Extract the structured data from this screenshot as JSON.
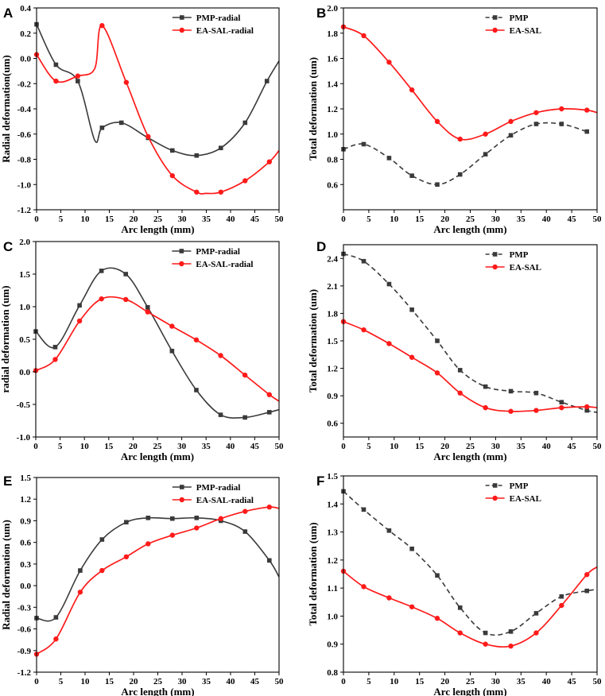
{
  "colors": {
    "pmp": "#3a3a3a",
    "easal": "#ff1a1a",
    "axis": "#000000",
    "background": "#ffffff"
  },
  "chart_data": [
    {
      "panel": "A",
      "type": "line",
      "xlabel": "Arc length (mm)",
      "ylabel": "Radial deformation(um)",
      "xlim": [
        0,
        50
      ],
      "ylim": [
        -1.2,
        0.4
      ],
      "xticks": [
        0,
        5,
        10,
        15,
        20,
        25,
        30,
        35,
        40,
        45,
        50
      ],
      "yticks": [
        -1.2,
        -1.0,
        -0.8,
        -0.6,
        -0.4,
        -0.2,
        0.0,
        0.2,
        0.4
      ],
      "ytick_labels": [
        "-1.2",
        "-1.0",
        "-0.8",
        "-0.6",
        "-0.4",
        "-0.2",
        "0.0",
        "0.2",
        "0.4"
      ],
      "legend_position": "top-right",
      "series": [
        {
          "name": "PMP-radial",
          "style": "solid",
          "marker": "square",
          "x": [
            0,
            4,
            8.5,
            12,
            13.5,
            17.5,
            23,
            28,
            33,
            38,
            43,
            47.5,
            50
          ],
          "y": [
            0.27,
            -0.05,
            -0.18,
            -0.65,
            -0.55,
            -0.51,
            -0.63,
            -0.73,
            -0.77,
            -0.71,
            -0.51,
            -0.18,
            -0.02
          ],
          "marker_indices": [
            0,
            1,
            2,
            4,
            5,
            6,
            7,
            8,
            9,
            10,
            11
          ]
        },
        {
          "name": "EA-SAL-radial",
          "style": "solid",
          "marker": "circle",
          "x": [
            0,
            4,
            8.5,
            12,
            13.5,
            18.5,
            23,
            28,
            33,
            35,
            38,
            43,
            48,
            50
          ],
          "y": [
            0.03,
            -0.18,
            -0.14,
            -0.08,
            0.26,
            -0.19,
            -0.62,
            -0.93,
            -1.06,
            -1.07,
            -1.06,
            -0.97,
            -0.82,
            -0.73
          ],
          "marker_indices": [
            0,
            1,
            2,
            4,
            5,
            6,
            7,
            8,
            10,
            11,
            12
          ]
        }
      ]
    },
    {
      "panel": "B",
      "type": "line",
      "xlabel": "Arc length (mm)",
      "ylabel": "Total deformation (um)",
      "xlim": [
        0,
        50
      ],
      "ylim": [
        0.4,
        2.0
      ],
      "xticks": [
        0,
        5,
        10,
        15,
        20,
        25,
        30,
        35,
        40,
        45,
        50
      ],
      "yticks": [
        0.6,
        0.8,
        1.0,
        1.2,
        1.4,
        1.6,
        1.8,
        2.0
      ],
      "ytick_labels": [
        "0.6",
        "0.8",
        "1.0",
        "1.2",
        "1.4",
        "1.6",
        "1.8",
        "2.0"
      ],
      "legend_position": "top-right",
      "series": [
        {
          "name": "PMP",
          "style": "dashed",
          "marker": "square",
          "x": [
            0,
            4,
            9,
            13.5,
            18.5,
            23,
            28,
            33,
            38,
            43,
            48
          ],
          "y": [
            0.88,
            0.92,
            0.81,
            0.67,
            0.6,
            0.68,
            0.84,
            0.99,
            1.08,
            1.08,
            1.02
          ],
          "marker_indices": [
            0,
            1,
            2,
            3,
            4,
            5,
            6,
            7,
            8,
            9,
            10
          ]
        },
        {
          "name": "EA-SAL",
          "style": "solid",
          "marker": "circle",
          "x": [
            0,
            4,
            9,
            13.5,
            18.5,
            23,
            28,
            33,
            38,
            43,
            48,
            50
          ],
          "y": [
            1.85,
            1.78,
            1.57,
            1.35,
            1.1,
            0.96,
            1.0,
            1.1,
            1.17,
            1.2,
            1.19,
            1.17
          ],
          "marker_indices": [
            0,
            1,
            2,
            3,
            4,
            5,
            6,
            7,
            8,
            9,
            10
          ]
        }
      ]
    },
    {
      "panel": "C",
      "type": "line",
      "xlabel": "Arc length (mm)",
      "ylabel": "radial deformation (um)",
      "xlim": [
        0,
        50
      ],
      "ylim": [
        -1.0,
        2.0
      ],
      "xticks": [
        0,
        5,
        10,
        15,
        20,
        25,
        30,
        35,
        40,
        45,
        50
      ],
      "yticks": [
        -1.0,
        -0.5,
        0.0,
        0.5,
        1.0,
        1.5,
        2.0
      ],
      "ytick_labels": [
        "-1.0",
        "-0.5",
        "0.0",
        "0.5",
        "1.0",
        "1.5",
        "2.0"
      ],
      "legend_position": "top-right",
      "series": [
        {
          "name": "PMP-radial",
          "style": "solid",
          "marker": "square",
          "x": [
            0,
            4,
            9,
            13.5,
            18.5,
            23,
            28,
            33,
            38,
            43,
            48,
            50
          ],
          "y": [
            0.62,
            0.38,
            1.02,
            1.55,
            1.5,
            0.99,
            0.32,
            -0.28,
            -0.66,
            -0.7,
            -0.62,
            -0.58
          ],
          "marker_indices": [
            0,
            1,
            2,
            3,
            4,
            5,
            6,
            7,
            8,
            9,
            10
          ]
        },
        {
          "name": "EA-SAL-radial",
          "style": "solid",
          "marker": "circle",
          "x": [
            0,
            4,
            9,
            13.5,
            18.5,
            23,
            28,
            33,
            38,
            43,
            48,
            50
          ],
          "y": [
            0.02,
            0.19,
            0.78,
            1.12,
            1.11,
            0.92,
            0.7,
            0.49,
            0.25,
            -0.05,
            -0.35,
            -0.45
          ],
          "marker_indices": [
            0,
            1,
            2,
            3,
            4,
            5,
            6,
            7,
            8,
            9,
            10
          ]
        }
      ]
    },
    {
      "panel": "D",
      "type": "line",
      "xlabel": "Arc length (mm)",
      "ylabel": "Total deformation (um)",
      "xlim": [
        0,
        50
      ],
      "ylim": [
        0.45,
        2.55
      ],
      "xticks": [
        0,
        5,
        10,
        15,
        20,
        25,
        30,
        35,
        40,
        45,
        50
      ],
      "yticks": [
        0.6,
        0.9,
        1.2,
        1.5,
        1.8,
        2.1,
        2.4
      ],
      "ytick_labels": [
        "0.6",
        "0.9",
        "1.2",
        "1.5",
        "1.8",
        "2.1",
        "2.4"
      ],
      "legend_position": "top-right",
      "series": [
        {
          "name": "PMP",
          "style": "dashed",
          "marker": "square",
          "x": [
            0,
            4,
            9,
            13.5,
            18.5,
            23,
            28,
            33,
            38,
            43,
            48,
            50
          ],
          "y": [
            2.45,
            2.37,
            2.12,
            1.84,
            1.5,
            1.18,
            1.0,
            0.95,
            0.93,
            0.83,
            0.74,
            0.72
          ],
          "marker_indices": [
            0,
            1,
            2,
            3,
            4,
            5,
            6,
            7,
            8,
            9,
            10
          ]
        },
        {
          "name": "EA-SAL",
          "style": "solid",
          "marker": "circle",
          "x": [
            0,
            4,
            9,
            13.5,
            18.5,
            23,
            28,
            33,
            38,
            43,
            48,
            50
          ],
          "y": [
            1.71,
            1.62,
            1.47,
            1.32,
            1.15,
            0.93,
            0.77,
            0.73,
            0.74,
            0.77,
            0.78,
            0.77
          ],
          "marker_indices": [
            0,
            1,
            2,
            3,
            4,
            5,
            6,
            7,
            8,
            9,
            10
          ]
        }
      ]
    },
    {
      "panel": "E",
      "type": "line",
      "xlabel": "Arc length (mm)",
      "ylabel": "Radial deformation (um)",
      "xlim": [
        0,
        50
      ],
      "ylim": [
        -1.2,
        1.5
      ],
      "xticks": [
        0,
        5,
        10,
        15,
        20,
        25,
        30,
        35,
        40,
        45,
        50
      ],
      "yticks": [
        -1.2,
        -0.9,
        -0.6,
        -0.3,
        0.0,
        0.3,
        0.6,
        0.9,
        1.2,
        1.5
      ],
      "ytick_labels": [
        "-1.2",
        "-0.9",
        "-0.6",
        "-0.3",
        "0.0",
        "0.3",
        "0.6",
        "0.9",
        "1.2",
        "1.5"
      ],
      "legend_position": "top-right",
      "series": [
        {
          "name": "PMP-radial",
          "style": "solid",
          "marker": "square",
          "x": [
            0,
            4,
            9,
            13.5,
            18.5,
            23,
            28,
            33,
            38,
            43,
            48,
            50
          ],
          "y": [
            -0.45,
            -0.44,
            0.21,
            0.64,
            0.88,
            0.94,
            0.93,
            0.94,
            0.9,
            0.75,
            0.35,
            0.12
          ],
          "marker_indices": [
            0,
            1,
            2,
            3,
            4,
            5,
            6,
            7,
            8,
            9,
            10
          ]
        },
        {
          "name": "EA-SAL-radial",
          "style": "solid",
          "marker": "circle",
          "x": [
            0,
            4,
            9,
            13.5,
            18.5,
            23,
            28,
            33,
            38,
            43,
            48,
            50
          ],
          "y": [
            -0.95,
            -0.74,
            -0.09,
            0.21,
            0.4,
            0.58,
            0.7,
            0.8,
            0.93,
            1.03,
            1.09,
            1.07
          ],
          "marker_indices": [
            0,
            1,
            2,
            3,
            4,
            5,
            6,
            7,
            8,
            9,
            10
          ]
        }
      ]
    },
    {
      "panel": "F",
      "type": "line",
      "xlabel": "Arc length (mm)",
      "ylabel": "Total deformation (um)",
      "xlim": [
        0,
        50
      ],
      "ylim": [
        0.8,
        1.5
      ],
      "xticks": [
        0,
        5,
        10,
        15,
        20,
        25,
        30,
        35,
        40,
        45,
        50
      ],
      "yticks": [
        0.8,
        0.9,
        1.0,
        1.1,
        1.2,
        1.3,
        1.4,
        1.5
      ],
      "ytick_labels": [
        "0.8",
        "0.9",
        "1.0",
        "1.1",
        "1.2",
        "1.3",
        "1.4",
        "1.5"
      ],
      "legend_position": "top-right",
      "series": [
        {
          "name": "PMP",
          "style": "dashed",
          "marker": "square",
          "x": [
            0,
            4,
            9,
            13.5,
            18.5,
            23,
            28,
            33,
            38,
            43,
            48,
            50
          ],
          "y": [
            1.445,
            1.38,
            1.305,
            1.24,
            1.145,
            1.03,
            0.94,
            0.945,
            1.01,
            1.07,
            1.09,
            1.095
          ],
          "marker_indices": [
            0,
            1,
            2,
            3,
            4,
            5,
            6,
            7,
            8,
            9,
            10
          ]
        },
        {
          "name": "EA-SAL",
          "style": "solid",
          "marker": "circle",
          "x": [
            0,
            4,
            9,
            13.5,
            18.5,
            23,
            28,
            33,
            38,
            43,
            48,
            50
          ],
          "y": [
            1.16,
            1.105,
            1.065,
            1.033,
            0.992,
            0.94,
            0.9,
            0.893,
            0.94,
            1.038,
            1.148,
            1.175
          ],
          "marker_indices": [
            0,
            1,
            2,
            3,
            4,
            5,
            6,
            7,
            8,
            9,
            10
          ]
        }
      ]
    }
  ]
}
